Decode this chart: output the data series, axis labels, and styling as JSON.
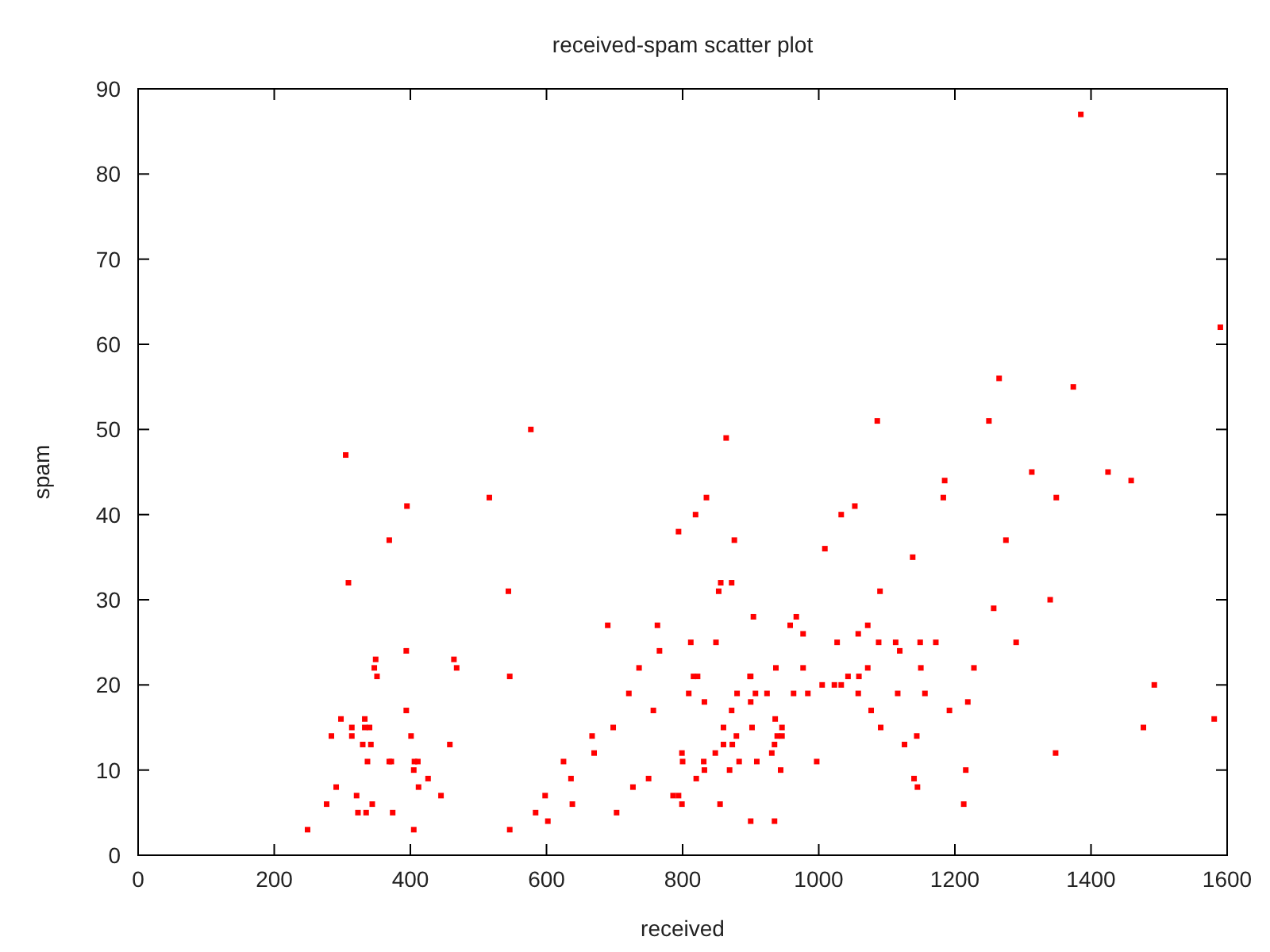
{
  "chart_data": {
    "type": "scatter",
    "title": "received-spam scatter plot",
    "xlabel": "received",
    "ylabel": "spam",
    "marker": "square",
    "color": "#ff0000",
    "xlim": [
      0,
      1600
    ],
    "ylim": [
      0,
      90
    ],
    "xticks": [
      0,
      200,
      400,
      600,
      800,
      1000,
      1200,
      1400,
      1600
    ],
    "yticks": [
      0,
      10,
      20,
      30,
      40,
      50,
      60,
      70,
      80,
      90
    ],
    "x": [
      249,
      277,
      284,
      291,
      298,
      305,
      309,
      314,
      314,
      321,
      323,
      330,
      333,
      333,
      340,
      335,
      337,
      342,
      344,
      347,
      349,
      351,
      516,
      395,
      369,
      544,
      690,
      763,
      835,
      819,
      794,
      876,
      856,
      872,
      853,
      394,
      464,
      468,
      546,
      394,
      401,
      458,
      369,
      372,
      406,
      411,
      405,
      426,
      412,
      445,
      374,
      405,
      546,
      625,
      636,
      598,
      638,
      584,
      602,
      667,
      670,
      698,
      721,
      736,
      757,
      766,
      812,
      849,
      816,
      822,
      809,
      832,
      880,
      900,
      872,
      860,
      879,
      860,
      873,
      799,
      848,
      800,
      831,
      883,
      832,
      869,
      750,
      820,
      727,
      786,
      794,
      799,
      855,
      703,
      900,
      1313,
      1425,
      1185,
      1183,
      1349,
      1053,
      1033,
      1009,
      1138,
      1275,
      1090,
      1257,
      1340,
      904,
      967,
      958,
      1072,
      977,
      1058,
      1027,
      1088,
      1113,
      1149,
      1172,
      1290,
      1119,
      937,
      977,
      1072,
      1150,
      1228,
      899,
      1043,
      1059,
      1005,
      1023,
      1033,
      907,
      924,
      963,
      984,
      1058,
      1116,
      1156,
      900,
      1219,
      1077,
      1192,
      936,
      902,
      946,
      1091,
      939,
      946,
      1144,
      1126,
      935,
      931,
      1348,
      909,
      997,
      944,
      1216,
      1140,
      1145,
      1213,
      935,
      1590,
      1459,
      1493,
      1477,
      1581,
      1385,
      1265,
      1374,
      1086,
      1250,
      864,
      577
    ],
    "values": [
      3,
      6,
      14,
      8,
      16,
      47,
      32,
      15,
      14,
      7,
      5,
      13,
      16,
      15,
      15,
      5,
      11,
      13,
      6,
      22,
      23,
      21,
      42,
      41,
      37,
      31,
      27,
      27,
      42,
      40,
      38,
      37,
      32,
      32,
      31,
      24,
      23,
      22,
      21,
      17,
      14,
      13,
      11,
      11,
      11,
      11,
      10,
      9,
      8,
      7,
      5,
      3,
      3,
      11,
      9,
      7,
      6,
      5,
      4,
      14,
      12,
      15,
      19,
      22,
      17,
      24,
      25,
      25,
      21,
      21,
      19,
      18,
      19,
      21,
      17,
      15,
      14,
      13,
      13,
      12,
      12,
      11,
      11,
      11,
      10,
      10,
      9,
      9,
      8,
      7,
      7,
      6,
      6,
      5,
      4,
      45,
      45,
      44,
      42,
      42,
      41,
      40,
      36,
      35,
      37,
      31,
      29,
      30,
      28,
      28,
      27,
      27,
      26,
      26,
      25,
      25,
      25,
      25,
      25,
      25,
      24,
      22,
      22,
      22,
      22,
      22,
      21,
      21,
      21,
      20,
      20,
      20,
      19,
      19,
      19,
      19,
      19,
      19,
      19,
      18,
      18,
      17,
      17,
      16,
      15,
      15,
      15,
      14,
      14,
      14,
      13,
      13,
      12,
      12,
      11,
      11,
      10,
      10,
      9,
      8,
      6,
      4,
      62,
      44,
      20,
      15,
      16,
      87,
      56,
      55,
      51,
      51,
      49,
      50
    ]
  }
}
